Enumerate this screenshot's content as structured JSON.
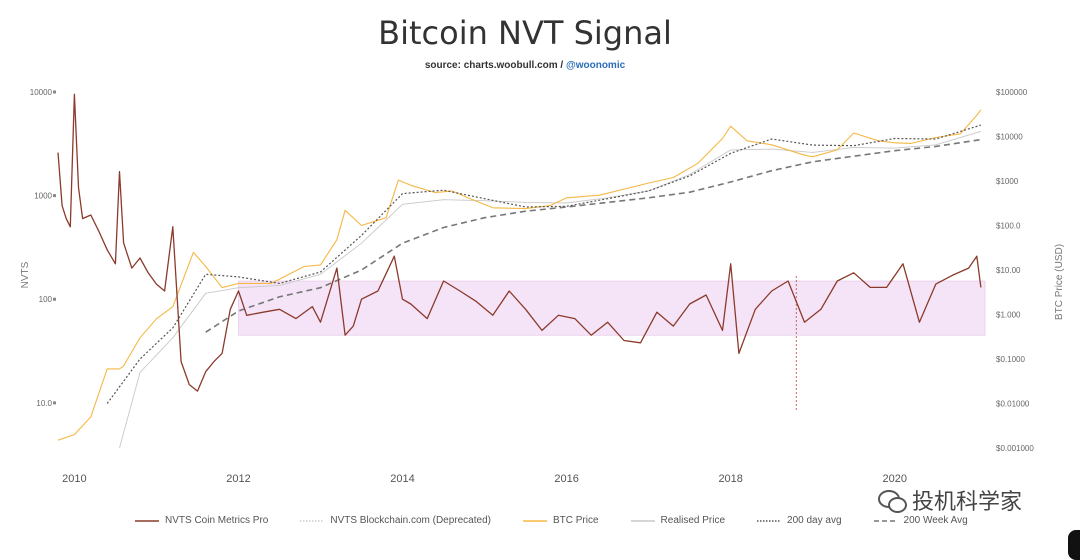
{
  "chart_data": {
    "type": "line",
    "title": "Bitcoin NVT Signal",
    "source_prefix": "source: charts.woobull.com / ",
    "source_handle": "@woonomic",
    "y_left_label": "NVTS",
    "y_right_label": "BTC Price (USD)",
    "y_left_ticks": [
      "10000",
      "1000",
      "100",
      "10.0"
    ],
    "y_right_ticks": [
      "$100000",
      "$10000",
      "$1000",
      "$100.0",
      "$10.00",
      "$1.000",
      "$0.1000",
      "$0.01000",
      "$0.001000"
    ],
    "x_ticks": [
      "2010",
      "2012",
      "2014",
      "2016",
      "2018",
      "2020"
    ],
    "x_range": [
      2009.8,
      2021.1
    ],
    "y_left_range": [
      5,
      10000
    ],
    "y_right_range": [
      0.001,
      100000
    ],
    "band": {
      "nvts_low": 45,
      "nvts_high": 150,
      "start": 2012.0,
      "end": 2021.1
    },
    "vertical_marker": 2018.8,
    "series": [
      {
        "name": "NVTS Coin Metrics Pro",
        "axis": "left",
        "color": "#8b3a2b",
        "x": [
          2009.8,
          2009.85,
          2009.9,
          2009.95,
          2010.0,
          2010.05,
          2010.1,
          2010.2,
          2010.3,
          2010.4,
          2010.5,
          2010.55,
          2010.6,
          2010.7,
          2010.8,
          2010.9,
          2011.0,
          2011.1,
          2011.2,
          2011.3,
          2011.4,
          2011.5,
          2011.6,
          2011.7,
          2011.8,
          2011.9,
          2012.0,
          2012.1,
          2012.3,
          2012.5,
          2012.7,
          2012.9,
          2013.0,
          2013.2,
          2013.3,
          2013.4,
          2013.5,
          2013.7,
          2013.9,
          2014.0,
          2014.1,
          2014.3,
          2014.5,
          2014.7,
          2014.9,
          2015.1,
          2015.3,
          2015.5,
          2015.7,
          2015.9,
          2016.1,
          2016.3,
          2016.5,
          2016.7,
          2016.9,
          2017.1,
          2017.3,
          2017.5,
          2017.7,
          2017.9,
          2018.0,
          2018.1,
          2018.3,
          2018.5,
          2018.7,
          2018.9,
          2019.1,
          2019.3,
          2019.5,
          2019.7,
          2019.9,
          2020.1,
          2020.3,
          2020.5,
          2020.7,
          2020.9,
          2021.0,
          2021.05
        ],
        "values": [
          2600,
          800,
          600,
          500,
          9500,
          1200,
          600,
          650,
          450,
          300,
          220,
          1700,
          350,
          200,
          250,
          180,
          140,
          120,
          500,
          25,
          15,
          13,
          20,
          25,
          30,
          80,
          120,
          70,
          75,
          80,
          65,
          85,
          60,
          200,
          45,
          55,
          100,
          120,
          260,
          100,
          90,
          65,
          150,
          120,
          95,
          70,
          120,
          80,
          50,
          70,
          65,
          45,
          60,
          40,
          38,
          75,
          55,
          90,
          110,
          50,
          220,
          30,
          80,
          120,
          150,
          60,
          80,
          150,
          180,
          130,
          130,
          220,
          60,
          140,
          170,
          200,
          260,
          130
        ]
      },
      {
        "name": "BTC Price",
        "axis": "right",
        "color": "#f5b845",
        "x": [
          2009.8,
          2010.0,
          2010.2,
          2010.4,
          2010.55,
          2010.6,
          2010.8,
          2011.0,
          2011.2,
          2011.45,
          2011.6,
          2011.8,
          2012.0,
          2012.4,
          2012.8,
          2013.0,
          2013.2,
          2013.3,
          2013.5,
          2013.8,
          2013.95,
          2014.1,
          2014.4,
          2014.6,
          2014.9,
          2015.1,
          2015.5,
          2015.8,
          2016.0,
          2016.4,
          2016.8,
          2017.0,
          2017.3,
          2017.6,
          2017.9,
          2018.0,
          2018.2,
          2018.5,
          2018.9,
          2019.0,
          2019.3,
          2019.5,
          2019.8,
          2020.0,
          2020.2,
          2020.5,
          2020.8,
          2021.0,
          2021.05
        ],
        "values": [
          0.0015,
          0.002,
          0.005,
          0.06,
          0.06,
          0.07,
          0.3,
          0.8,
          1.5,
          25,
          12,
          4,
          5,
          5,
          12,
          13,
          48,
          220,
          100,
          150,
          1050,
          800,
          550,
          600,
          350,
          250,
          240,
          280,
          420,
          480,
          730,
          900,
          1200,
          2500,
          9000,
          17000,
          8000,
          6500,
          3800,
          3500,
          5000,
          12000,
          8000,
          7200,
          7000,
          9500,
          11500,
          30000,
          40000
        ]
      },
      {
        "name": "Realised Price",
        "axis": "right",
        "color": "#c8c8c8",
        "x": [
          2010.55,
          2010.8,
          2011.2,
          2011.6,
          2012.0,
          2012.5,
          2013.0,
          2013.5,
          2014.0,
          2014.5,
          2015.0,
          2015.5,
          2016.0,
          2016.5,
          2017.0,
          2017.5,
          2018.0,
          2018.5,
          2019.0,
          2019.5,
          2020.0,
          2020.5,
          2021.05
        ],
        "values": [
          0.001,
          0.05,
          0.3,
          3,
          4,
          4.5,
          8,
          40,
          300,
          380,
          360,
          330,
          320,
          420,
          600,
          1400,
          5000,
          5200,
          4400,
          5700,
          5500,
          6500,
          13000
        ]
      },
      {
        "name": "200 day avg",
        "axis": "right",
        "color": "#555555",
        "x": [
          2010.4,
          2010.8,
          2011.2,
          2011.6,
          2012.0,
          2012.5,
          2013.0,
          2013.5,
          2014.0,
          2014.5,
          2015.0,
          2015.5,
          2016.0,
          2016.5,
          2017.0,
          2017.5,
          2018.0,
          2018.5,
          2019.0,
          2019.5,
          2020.0,
          2020.5,
          2021.05
        ],
        "values": [
          0.01,
          0.1,
          0.5,
          8,
          7,
          5,
          9,
          60,
          520,
          620,
          400,
          260,
          270,
          400,
          600,
          1300,
          4200,
          8800,
          6400,
          6200,
          9000,
          8800,
          18000
        ]
      },
      {
        "name": "200 Week Avg",
        "axis": "right",
        "color": "#777777",
        "x": [
          2011.6,
          2012.0,
          2012.5,
          2013.0,
          2013.5,
          2014.0,
          2014.5,
          2015.0,
          2015.5,
          2016.0,
          2016.5,
          2017.0,
          2017.5,
          2018.0,
          2018.5,
          2019.0,
          2019.5,
          2020.0,
          2020.5,
          2021.05
        ],
        "values": [
          0.4,
          1.2,
          2.5,
          4,
          10,
          40,
          90,
          150,
          210,
          260,
          330,
          420,
          560,
          950,
          1700,
          2700,
          3600,
          4800,
          6000,
          8500
        ]
      }
    ]
  },
  "legend": [
    {
      "label": "NVTS Coin Metrics Pro",
      "color": "#8b3a2b",
      "style": "solid"
    },
    {
      "label": "NVTS Blockchain.com (Deprecated)",
      "color": "#cccccc",
      "style": "dotted"
    },
    {
      "label": "BTC Price",
      "color": "#f5b845",
      "style": "solid"
    },
    {
      "label": "Realised Price",
      "color": "#c8c8c8",
      "style": "solid"
    },
    {
      "label": "200 day avg",
      "color": "#555555",
      "style": "dotted"
    },
    {
      "label": "200 Week Avg",
      "color": "#777777",
      "style": "dashed"
    }
  ],
  "watermark": {
    "text": "投机科学家"
  }
}
